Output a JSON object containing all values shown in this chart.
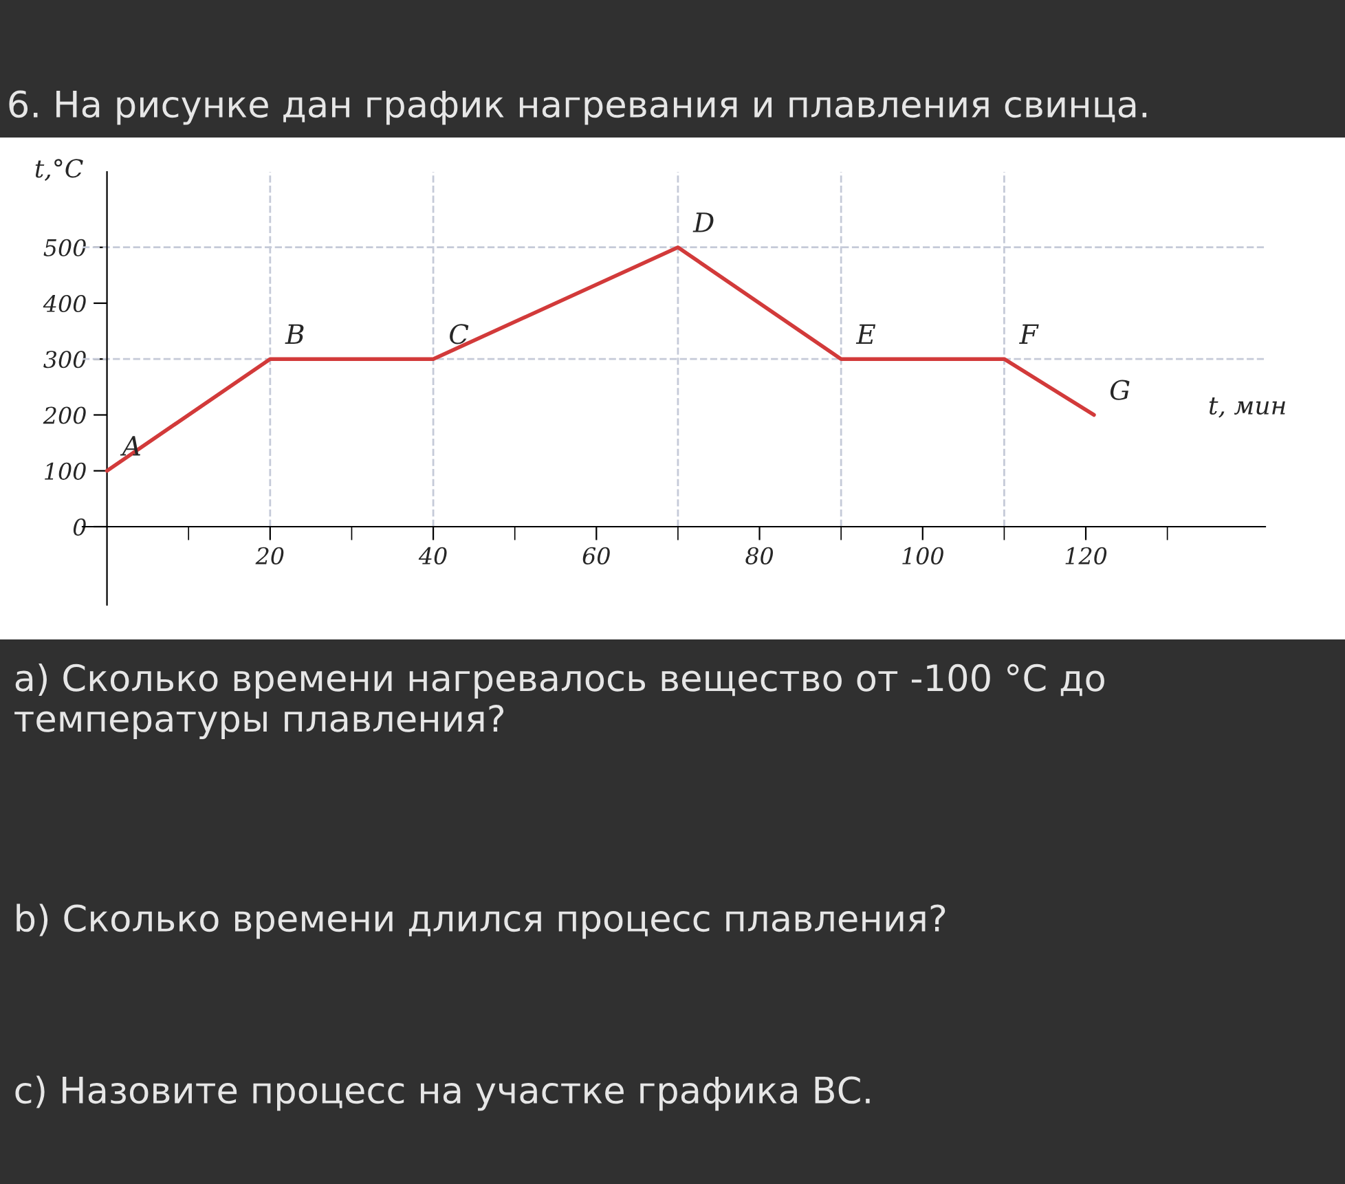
{
  "chart_data": {
    "type": "line",
    "title": "6. На рисунке дан график нагревания и плавления свинца.",
    "xlabel": "t, мин",
    "ylabel": "t,°C",
    "x": [
      0,
      20,
      40,
      70,
      90,
      110,
      121
    ],
    "series": [
      {
        "color": "#d23a3a",
        "values": [
          100,
          300,
          300,
          500,
          300,
          300,
          200
        ]
      }
    ],
    "xlim": [
      -3,
      142
    ],
    "ylim": [
      0,
      635
    ],
    "xticks": [
      {
        "value": 10,
        "label": null
      },
      20,
      {
        "value": 30,
        "label": null
      },
      40,
      {
        "value": 50,
        "label": null
      },
      60,
      {
        "value": 70,
        "label": null
      },
      80,
      {
        "value": 90,
        "label": null
      },
      100,
      {
        "value": 110,
        "label": null
      },
      120,
      {
        "value": 130,
        "label": null
      }
    ],
    "yticks": [
      0,
      100,
      200,
      300,
      400,
      500
    ],
    "grid": false,
    "marker": "none",
    "line_style": "solid",
    "ref_lines": [
      {
        "axis": "y",
        "value": 500,
        "color": "#c5cad8",
        "line_style": "dashed"
      },
      {
        "axis": "y",
        "value": 300,
        "color": "#c5cad8",
        "line_style": "dashed"
      },
      {
        "axis": "x",
        "value": 20,
        "color": "#c5cad8",
        "line_style": "dashed"
      },
      {
        "axis": "x",
        "value": 40,
        "color": "#c5cad8",
        "line_style": "dashed"
      },
      {
        "axis": "x",
        "value": 70,
        "color": "#c5cad8",
        "line_style": "dashed"
      },
      {
        "axis": "x",
        "value": 90,
        "color": "#c5cad8",
        "line_style": "dashed"
      },
      {
        "axis": "x",
        "value": 110,
        "color": "#c5cad8",
        "line_style": "dashed"
      }
    ],
    "annotations": [
      {
        "text": "A",
        "x": 0,
        "y": 100
      },
      {
        "text": "B",
        "x": 20,
        "y": 300
      },
      {
        "text": "C",
        "x": 40,
        "y": 300
      },
      {
        "text": "D",
        "x": 70,
        "y": 500
      },
      {
        "text": "E",
        "x": 90,
        "y": 300
      },
      {
        "text": "F",
        "x": 110,
        "y": 300
      },
      {
        "text": "G",
        "x": 121,
        "y": 200
      },
      "a) Сколько времени нагревалось вещество от -100 °C до температуры плавления?",
      "b) Сколько времени длился процесс плавления?",
      "c) Назовите процесс на участке графика ВС."
    ]
  }
}
